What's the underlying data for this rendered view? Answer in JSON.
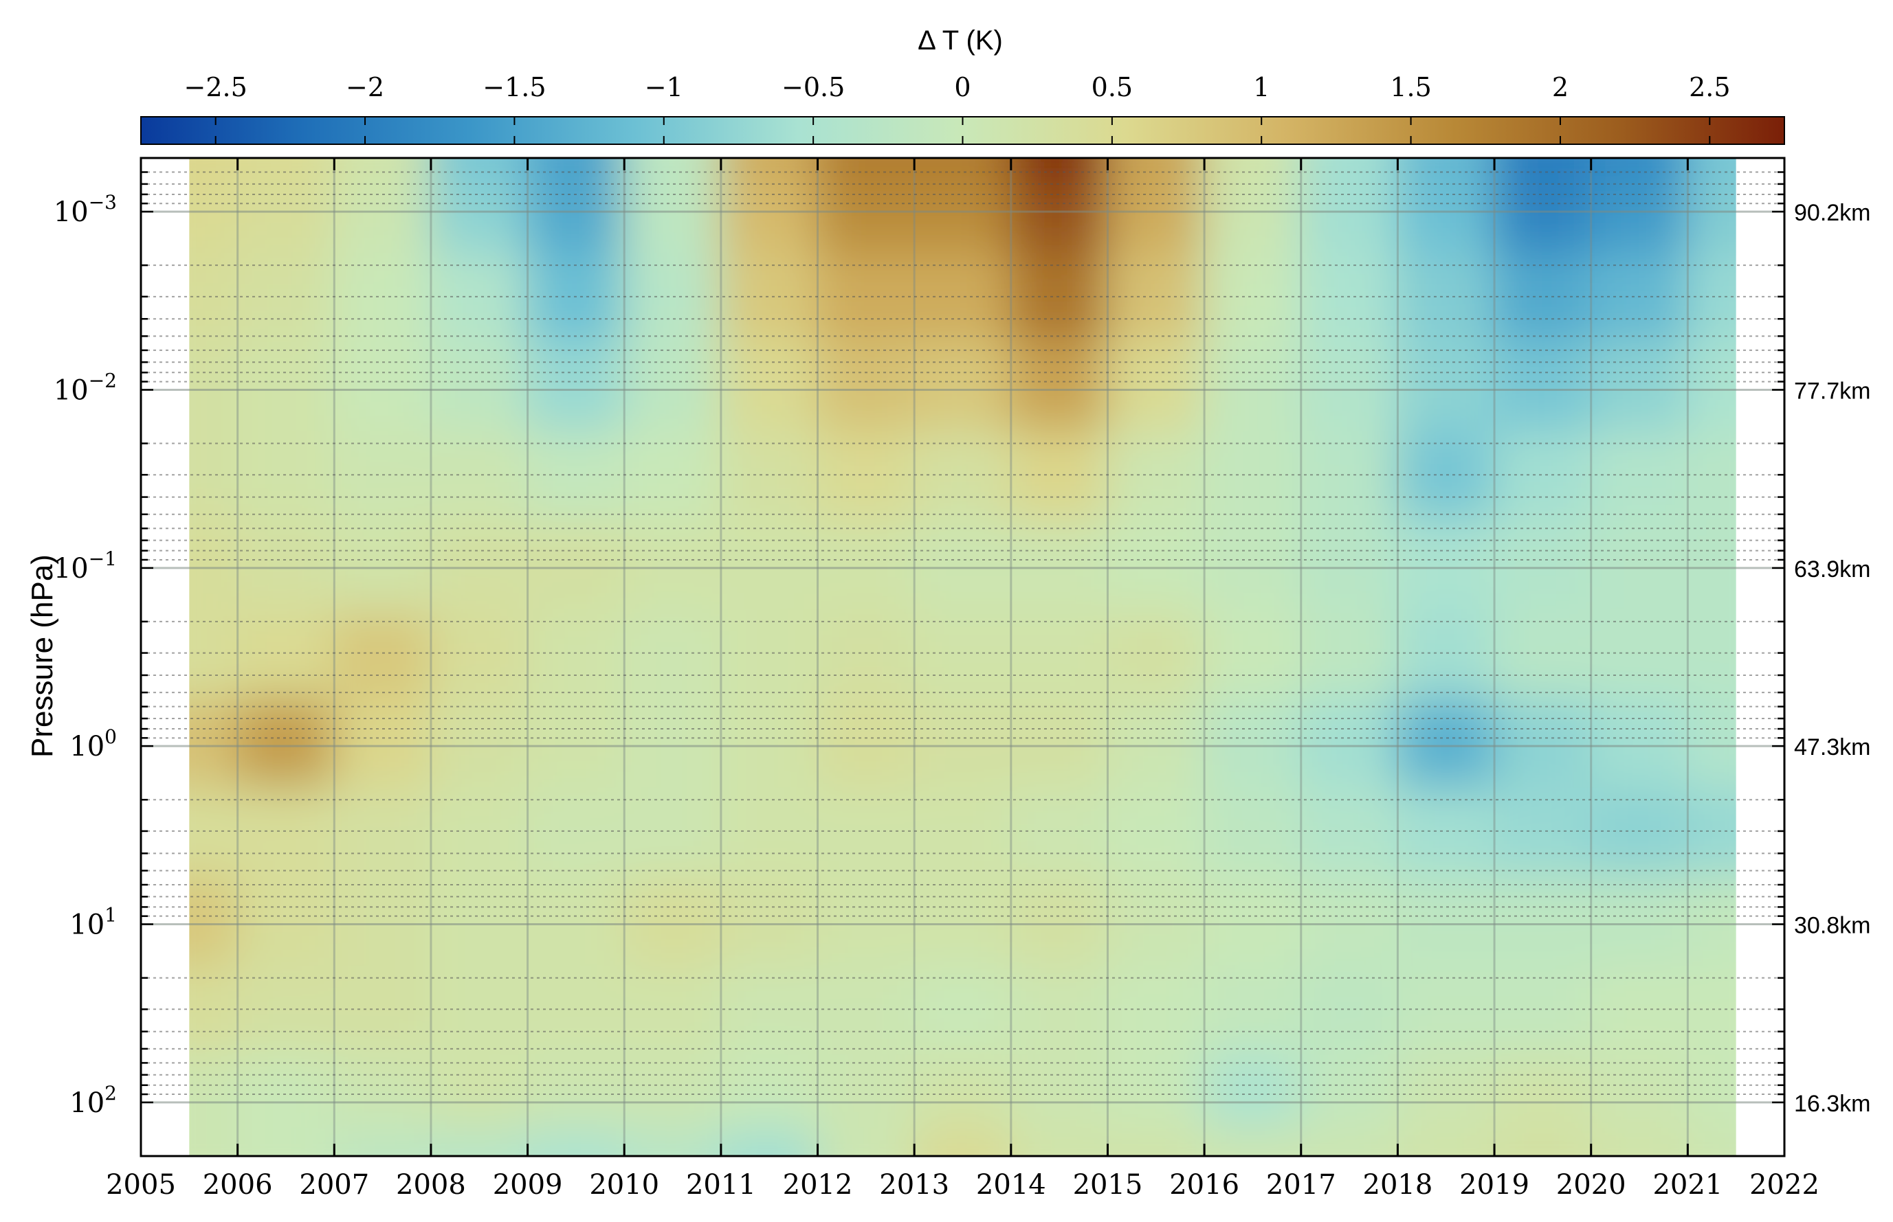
{
  "chart_data": {
    "type": "heatmap",
    "title": "",
    "colorbar": {
      "label": "Δ T (K)",
      "ticks": [
        "−2.5",
        "−2",
        "−1.5",
        "−1",
        "−0.5",
        "0",
        "0.5",
        "1",
        "1.5",
        "2",
        "2.5"
      ],
      "tick_values": [
        -2.5,
        -2,
        -1.5,
        -1,
        -0.5,
        0,
        0.5,
        1,
        1.5,
        2,
        2.5
      ],
      "range": [
        -2.75,
        2.75
      ],
      "colormap": [
        "#0a3a9c",
        "#1f6fb8",
        "#3b96c8",
        "#6cc0d4",
        "#a9e2d2",
        "#c9e8b8",
        "#dcd98f",
        "#d3b364",
        "#b88836",
        "#9c5d1e",
        "#7a1f08"
      ]
    },
    "ylabel": "Pressure (hPa)",
    "y_scale": "log",
    "y_inverted": true,
    "ylim": [
      200,
      0.0005
    ],
    "y_ticks": [
      {
        "value": 0.001,
        "base": "10",
        "exp": "−3"
      },
      {
        "value": 0.01,
        "base": "10",
        "exp": "−2"
      },
      {
        "value": 0.1,
        "base": "10",
        "exp": "−1"
      },
      {
        "value": 1,
        "base": "10",
        "exp": "0"
      },
      {
        "value": 10,
        "base": "10",
        "exp": "1"
      },
      {
        "value": 100,
        "base": "10",
        "exp": "2"
      }
    ],
    "right_axis_labels": [
      {
        "value": 0.001,
        "text": "90.2km"
      },
      {
        "value": 0.01,
        "text": "77.7km"
      },
      {
        "value": 0.1,
        "text": "63.9km"
      },
      {
        "value": 1,
        "text": "47.3km"
      },
      {
        "value": 10,
        "text": "30.8km"
      },
      {
        "value": 100,
        "text": "16.3km"
      }
    ],
    "xlim": [
      2005,
      2022
    ],
    "x_ticks": [
      2005,
      2006,
      2007,
      2008,
      2009,
      2010,
      2011,
      2012,
      2013,
      2014,
      2015,
      2016,
      2017,
      2018,
      2019,
      2020,
      2021,
      2022
    ],
    "x_tick_labels": [
      "2005",
      "2006",
      "2007",
      "2008",
      "2009",
      "2010",
      "2011",
      "2012",
      "2013",
      "2014",
      "2015",
      "2016",
      "2017",
      "2018",
      "2019",
      "2020",
      "2021",
      "2022"
    ],
    "data_x_range": [
      2005.5,
      2021.5
    ],
    "grid": true,
    "pressure_levels": [
      0.0005,
      0.001,
      0.003,
      0.01,
      0.03,
      0.1,
      0.3,
      1,
      3,
      10,
      30,
      100,
      200
    ],
    "year_centers": [
      2005.5,
      2006.5,
      2007.5,
      2008.5,
      2009.5,
      2010.5,
      2011.5,
      2012.5,
      2013.5,
      2014.5,
      2015.5,
      2016.5,
      2017.5,
      2018.5,
      2019.5,
      2020.5,
      2021.5
    ],
    "values": [
      [
        0.6,
        0.5,
        0.2,
        -1.0,
        -1.5,
        -0.2,
        1.2,
        1.8,
        1.8,
        2.6,
        1.3,
        0.2,
        -0.6,
        -1.2,
        -2.0,
        -1.8,
        -1.0
      ],
      [
        0.5,
        0.4,
        0.1,
        -0.8,
        -1.4,
        -0.2,
        1.0,
        1.6,
        1.6,
        2.3,
        1.2,
        0.1,
        -0.6,
        -1.1,
        -1.9,
        -1.6,
        -0.9
      ],
      [
        0.4,
        0.3,
        0.0,
        -0.4,
        -1.1,
        -0.3,
        0.8,
        1.2,
        1.2,
        1.9,
        0.9,
        0.0,
        -0.5,
        -0.9,
        -1.4,
        -1.2,
        -0.7
      ],
      [
        0.3,
        0.2,
        0.0,
        -0.2,
        -0.7,
        -0.2,
        0.5,
        0.9,
        0.8,
        1.3,
        0.5,
        -0.1,
        -0.4,
        -0.8,
        -1.0,
        -0.8,
        -0.5
      ],
      [
        0.3,
        0.2,
        0.1,
        0.1,
        -0.1,
        0.0,
        0.3,
        0.5,
        0.3,
        0.6,
        0.1,
        -0.1,
        -0.3,
        -1.0,
        -0.6,
        -0.4,
        -0.3
      ],
      [
        0.4,
        0.3,
        0.2,
        0.3,
        0.3,
        0.2,
        0.2,
        0.2,
        0.1,
        0.1,
        0.0,
        -0.1,
        -0.3,
        -0.5,
        -0.4,
        -0.3,
        -0.3
      ],
      [
        0.4,
        0.5,
        0.8,
        0.4,
        0.2,
        0.1,
        0.2,
        0.3,
        0.2,
        0.2,
        0.3,
        0.0,
        -0.2,
        -0.6,
        -0.3,
        -0.3,
        -0.3
      ],
      [
        0.9,
        1.4,
        0.6,
        0.3,
        0.2,
        0.1,
        0.2,
        0.4,
        0.3,
        0.3,
        0.1,
        -0.3,
        -0.6,
        -1.3,
        -0.8,
        -0.6,
        -0.4
      ],
      [
        0.4,
        0.4,
        0.3,
        0.2,
        0.1,
        0.1,
        0.2,
        0.2,
        0.2,
        0.1,
        0.0,
        -0.2,
        -0.4,
        -0.6,
        -0.7,
        -0.8,
        -0.7
      ],
      [
        0.8,
        0.4,
        0.3,
        0.2,
        0.2,
        0.4,
        0.3,
        0.2,
        0.2,
        0.3,
        0.1,
        0.0,
        -0.1,
        -0.2,
        -0.2,
        -0.2,
        -0.1
      ],
      [
        0.4,
        0.3,
        0.3,
        0.2,
        0.2,
        0.2,
        0.1,
        0.1,
        0.0,
        0.1,
        0.0,
        -0.1,
        -0.2,
        -0.1,
        -0.1,
        0.0,
        0.0
      ],
      [
        0.1,
        0.0,
        0.1,
        0.2,
        0.1,
        0.1,
        0.0,
        0.1,
        0.2,
        0.1,
        0.0,
        -0.5,
        -0.1,
        0.1,
        0.2,
        0.1,
        0.0
      ],
      [
        0.1,
        0.0,
        -0.2,
        -0.3,
        -0.5,
        -0.3,
        -0.6,
        0.1,
        0.5,
        0.2,
        0.2,
        0.1,
        0.1,
        0.2,
        0.3,
        0.2,
        0.1
      ]
    ]
  }
}
